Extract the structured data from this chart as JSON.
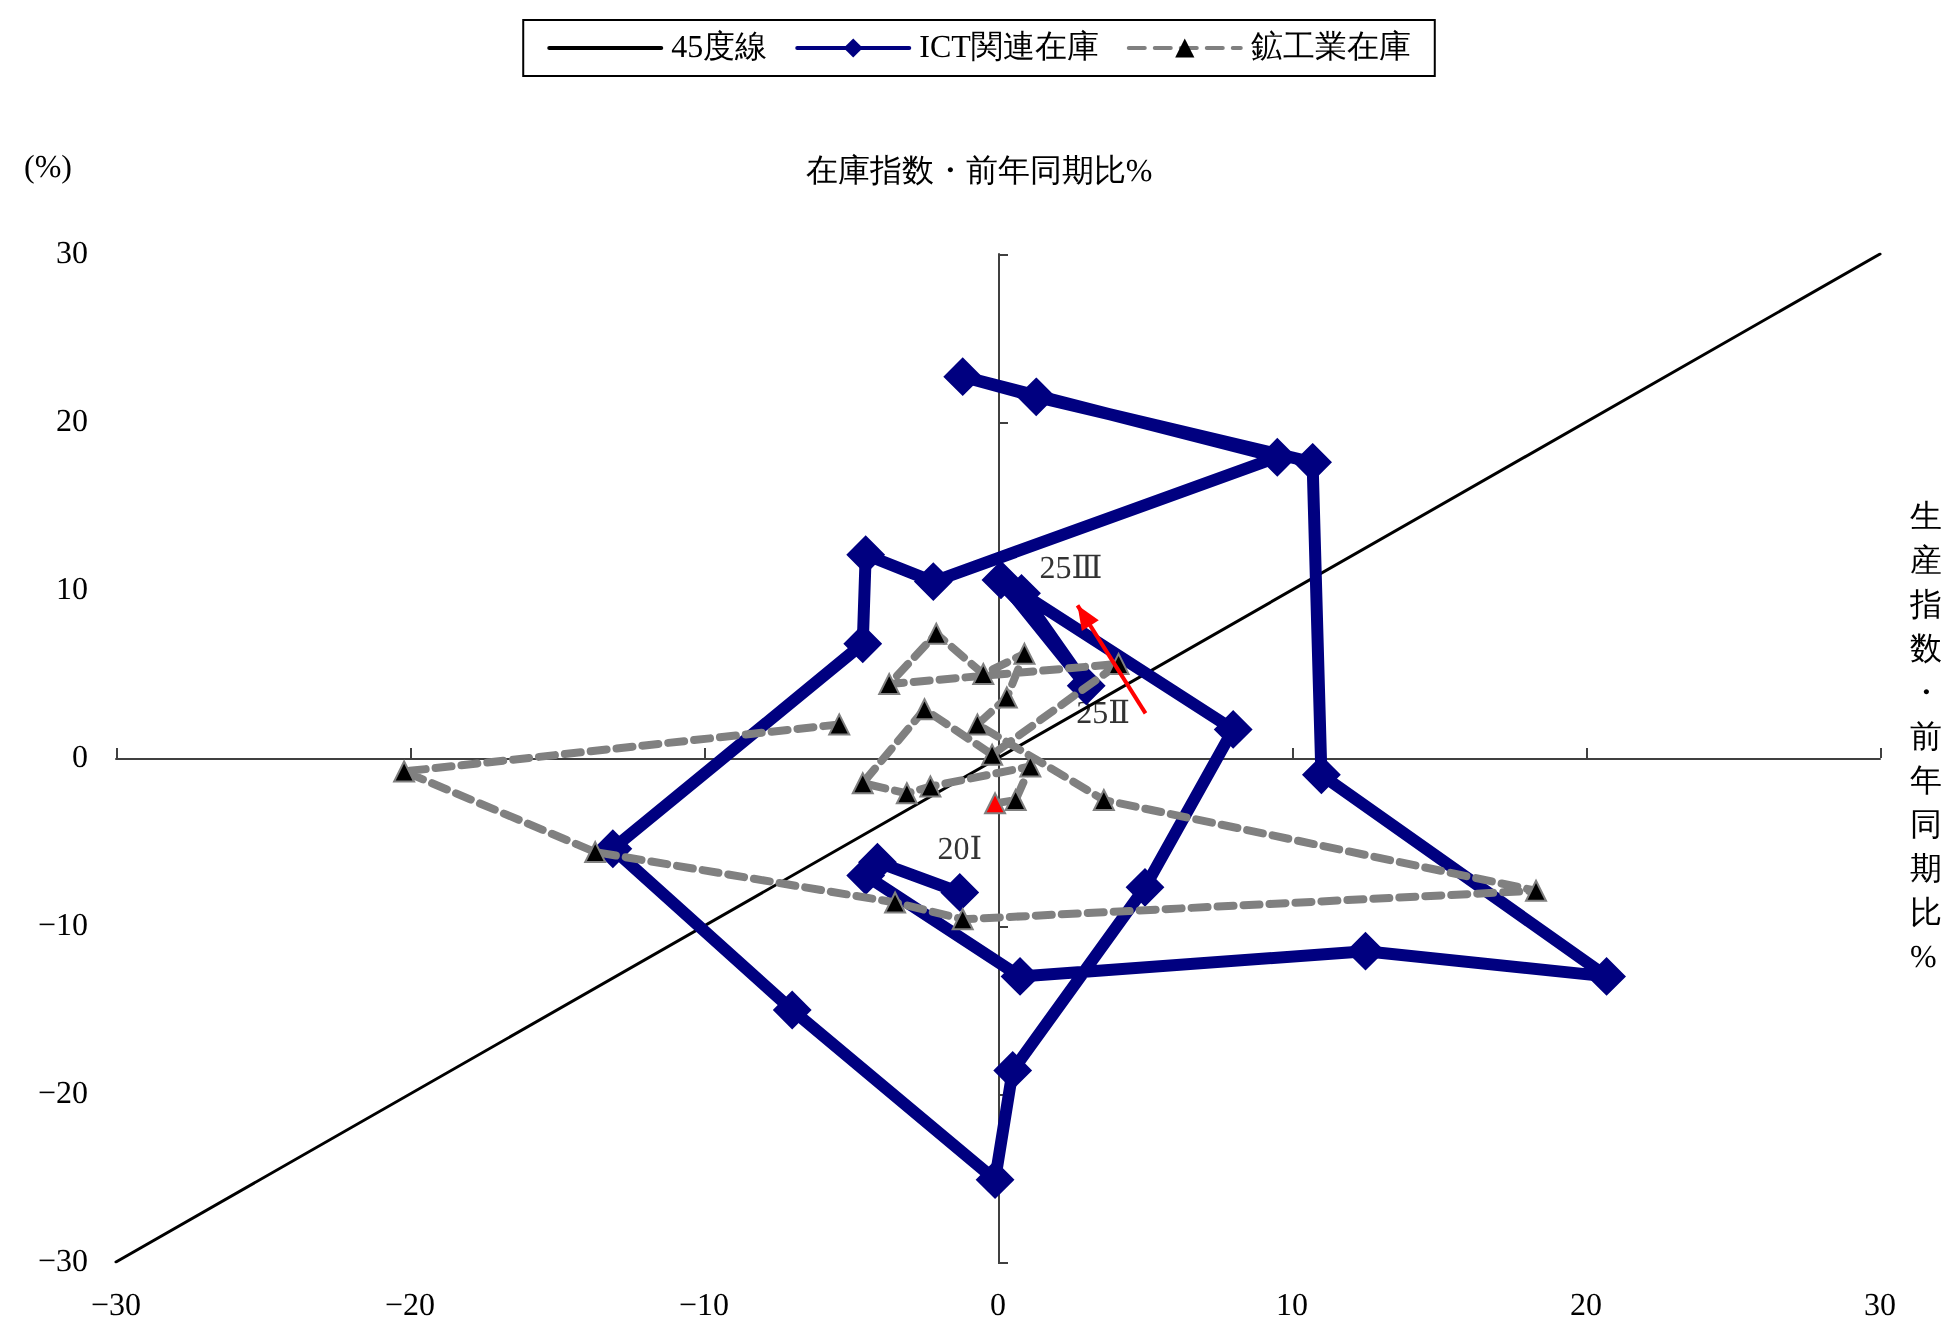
{
  "chart_data": {
    "type": "line",
    "xlabel": "生産指数・前年同期比%",
    "ylabel": "在庫指数・前年同期比%",
    "annotations": [
      "(%)",
      {
        "text": "20Ⅰ",
        "x": -1.3,
        "y": -8.0
      },
      {
        "text": "25Ⅱ",
        "x": 3.0,
        "y": 4.3
      },
      {
        "text": "25Ⅲ",
        "x": 0.8,
        "y": 9.8
      }
    ],
    "xlim": [
      -30,
      30
    ],
    "xticks": [
      -30,
      -20,
      -10,
      0,
      10,
      20,
      30
    ],
    "ylim": [
      -30,
      30
    ],
    "yticks": [
      -30,
      -20,
      -10,
      0,
      10,
      20,
      30
    ],
    "legend": "top",
    "series": [
      {
        "name": "45度線",
        "color": "#000000",
        "marker": "none",
        "line_style": "solid",
        "x": [
          -30,
          30
        ],
        "values": [
          -30,
          30
        ]
      },
      {
        "name": "ICT関連在庫",
        "color": "#000080",
        "marker": "diamond",
        "line_style": "solid",
        "x": [
          -1.3,
          -4.1,
          -4.5,
          0.75,
          12.5,
          20.7,
          11.0,
          10.7,
          1.3,
          -1.2,
          9.5,
          -2.2,
          -4.5,
          -4.6,
          -13.1,
          -7.0,
          -0.1,
          0.5,
          5.0,
          8.0,
          0.1,
          3.0,
          0.8
        ],
        "values": [
          -8.0,
          -6.2,
          -7.0,
          -13.0,
          -11.5,
          -13.0,
          -1.0,
          17.6,
          21.5,
          22.7,
          17.9,
          10.5,
          12.1,
          6.8,
          -5.4,
          -15.0,
          -25.1,
          -18.6,
          -7.7,
          1.7,
          10.6,
          4.3,
          9.8
        ]
      },
      {
        "name": "鉱工業在庫",
        "color": "#808080",
        "marker": "triangle",
        "line_style": "dashed",
        "x": [
          -5.4,
          -20.2,
          -13.7,
          -3.5,
          -1.2,
          18.3,
          3.6,
          -0.7,
          0.3,
          0.9,
          -0.5,
          -2.1,
          -3.7,
          4.1,
          -0.2,
          -2.5,
          -4.6,
          -3.1,
          -2.3,
          1.1,
          0.6,
          -0.1
        ],
        "values": [
          2.0,
          -0.8,
          -5.6,
          -8.6,
          -9.6,
          -7.9,
          -2.5,
          2.0,
          3.6,
          6.2,
          5.0,
          7.4,
          4.4,
          5.6,
          0.2,
          2.9,
          -1.5,
          -2.1,
          -1.7,
          -0.5,
          -2.5,
          -2.7
        ],
        "colors": [
          "#000000",
          "#000000",
          "#000000",
          "#000000",
          "#000000",
          "#000000",
          "#000000",
          "#000000",
          "#000000",
          "#000000",
          "#000000",
          "#000000",
          "#000000",
          "#000000",
          "#000000",
          "#000000",
          "#000000",
          "#000000",
          "#000000",
          "#000000",
          "#000000",
          "#ff0000"
        ]
      }
    ]
  }
}
